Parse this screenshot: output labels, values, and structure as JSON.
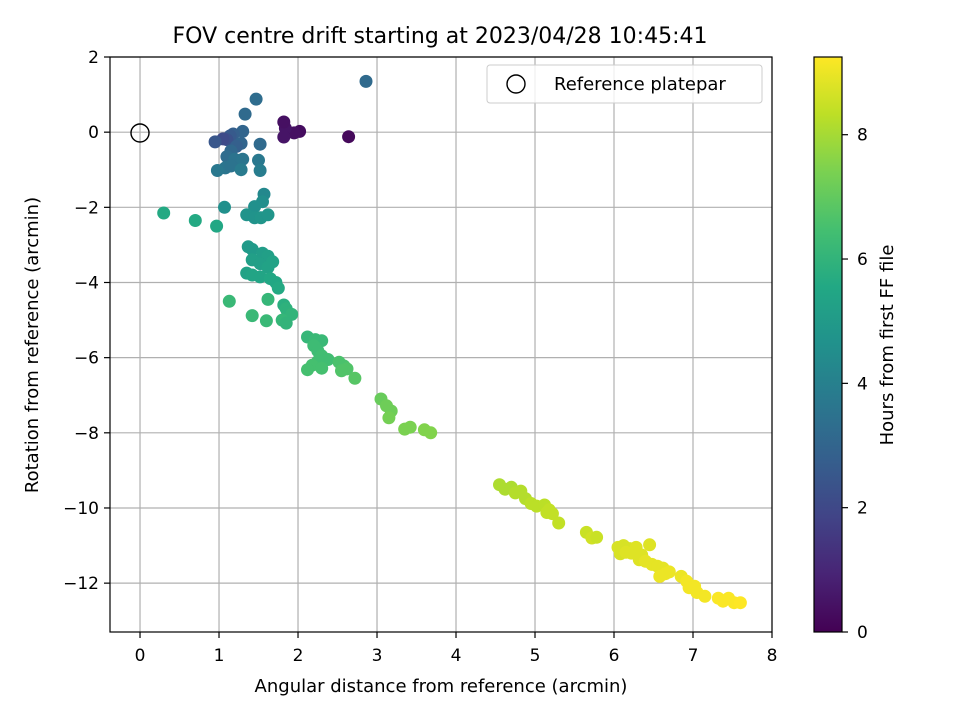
{
  "chart_data": {
    "type": "scatter",
    "title": "FOV centre drift starting at 2023/04/28 10:45:41",
    "xlabel": "Angular distance from reference (arcmin)",
    "ylabel": "Rotation from reference (arcmin)",
    "xlim": [
      -0.38,
      8.0
    ],
    "ylim": [
      -13.3,
      2.0
    ],
    "xticks": [
      0,
      1,
      2,
      3,
      4,
      5,
      6,
      7,
      8
    ],
    "yticks": [
      2,
      0,
      -2,
      -4,
      -6,
      -8,
      -10,
      -12
    ],
    "grid": true,
    "legend": {
      "location": "top-right",
      "entries": [
        "Reference platepar"
      ]
    },
    "reference": {
      "x": 0,
      "y": 0
    },
    "colorbar": {
      "label": "Hours from first FF file",
      "range": [
        0,
        9.25
      ],
      "ticks": [
        0,
        2,
        4,
        6,
        8
      ],
      "colormap": "viridis"
    },
    "points": [
      [
        2.86,
        1.35,
        3.2
      ],
      [
        2.64,
        -0.12,
        0.2
      ],
      [
        2.02,
        0.02,
        0.3
      ],
      [
        1.95,
        -0.02,
        0.4
      ],
      [
        1.84,
        0.1,
        0.5
      ],
      [
        1.82,
        0.27,
        0.4
      ],
      [
        1.82,
        -0.13,
        0.5
      ],
      [
        1.47,
        0.88,
        3.3
      ],
      [
        1.33,
        0.48,
        3.2
      ],
      [
        1.3,
        0.02,
        3.0
      ],
      [
        1.18,
        -0.05,
        2.8
      ],
      [
        1.14,
        -0.1,
        2.6
      ],
      [
        1.1,
        -0.2,
        2.3
      ],
      [
        1.05,
        -0.18,
        2.1
      ],
      [
        0.95,
        -0.26,
        2.5
      ],
      [
        1.28,
        -0.3,
        3.0
      ],
      [
        1.22,
        -0.38,
        2.8
      ],
      [
        1.15,
        -0.5,
        3.1
      ],
      [
        1.52,
        -0.32,
        3.2
      ],
      [
        1.1,
        -0.65,
        3.3
      ],
      [
        1.2,
        -0.72,
        3.5
      ],
      [
        1.3,
        -0.72,
        3.6
      ],
      [
        1.5,
        -0.75,
        3.7
      ],
      [
        1.08,
        -0.95,
        3.6
      ],
      [
        1.15,
        -0.9,
        3.5
      ],
      [
        0.98,
        -1.02,
        3.7
      ],
      [
        1.28,
        -1.0,
        3.8
      ],
      [
        1.52,
        -1.02,
        3.9
      ],
      [
        1.57,
        -1.65,
        4.3
      ],
      [
        1.55,
        -1.85,
        4.5
      ],
      [
        1.45,
        -1.98,
        4.6
      ],
      [
        1.35,
        -2.2,
        4.7
      ],
      [
        1.45,
        -2.28,
        4.7
      ],
      [
        1.53,
        -2.28,
        4.8
      ],
      [
        1.62,
        -2.2,
        4.8
      ],
      [
        1.07,
        -2.0,
        4.6
      ],
      [
        0.3,
        -2.15,
        5.6
      ],
      [
        0.7,
        -2.35,
        5.6
      ],
      [
        0.97,
        -2.5,
        5.5
      ],
      [
        1.37,
        -3.05,
        5.0
      ],
      [
        1.42,
        -3.12,
        5.0
      ],
      [
        1.55,
        -3.22,
        5.1
      ],
      [
        1.62,
        -3.3,
        5.2
      ],
      [
        1.42,
        -3.4,
        5.2
      ],
      [
        1.52,
        -3.5,
        5.2
      ],
      [
        1.68,
        -3.45,
        5.3
      ],
      [
        1.62,
        -3.6,
        5.3
      ],
      [
        1.35,
        -3.75,
        5.3
      ],
      [
        1.42,
        -3.8,
        5.4
      ],
      [
        1.52,
        -3.85,
        5.4
      ],
      [
        1.65,
        -3.9,
        5.5
      ],
      [
        1.72,
        -4.0,
        5.5
      ],
      [
        1.75,
        -4.15,
        5.6
      ],
      [
        1.82,
        -4.6,
        5.8
      ],
      [
        1.85,
        -4.7,
        5.9
      ],
      [
        1.87,
        -4.8,
        5.9
      ],
      [
        1.92,
        -4.85,
        6.0
      ],
      [
        1.8,
        -5.0,
        6.1
      ],
      [
        1.85,
        -5.08,
        6.0
      ],
      [
        1.62,
        -4.45,
        6.1
      ],
      [
        1.13,
        -4.5,
        6.2
      ],
      [
        1.42,
        -4.88,
        6.2
      ],
      [
        1.6,
        -5.02,
        6.2
      ],
      [
        2.12,
        -5.45,
        6.1
      ],
      [
        2.22,
        -5.52,
        6.2
      ],
      [
        2.3,
        -5.55,
        6.2
      ],
      [
        2.2,
        -5.68,
        6.3
      ],
      [
        2.25,
        -5.82,
        6.3
      ],
      [
        2.3,
        -5.95,
        6.4
      ],
      [
        2.38,
        -6.05,
        6.4
      ],
      [
        2.25,
        -6.1,
        6.4
      ],
      [
        2.18,
        -6.2,
        6.5
      ],
      [
        2.12,
        -6.32,
        6.5
      ],
      [
        2.3,
        -6.28,
        6.5
      ],
      [
        2.52,
        -6.12,
        6.6
      ],
      [
        2.58,
        -6.22,
        6.6
      ],
      [
        2.62,
        -6.3,
        6.7
      ],
      [
        2.55,
        -6.35,
        6.7
      ],
      [
        2.72,
        -6.55,
        6.8
      ],
      [
        3.05,
        -7.1,
        7.1
      ],
      [
        3.12,
        -7.28,
        7.2
      ],
      [
        3.18,
        -7.42,
        7.2
      ],
      [
        3.15,
        -7.6,
        7.3
      ],
      [
        3.35,
        -7.9,
        7.4
      ],
      [
        3.42,
        -7.85,
        7.4
      ],
      [
        3.6,
        -7.92,
        7.5
      ],
      [
        3.68,
        -8.0,
        7.5
      ],
      [
        4.55,
        -9.38,
        8.1
      ],
      [
        4.62,
        -9.5,
        8.1
      ],
      [
        4.7,
        -9.45,
        8.1
      ],
      [
        4.75,
        -9.6,
        8.2
      ],
      [
        4.82,
        -9.55,
        8.2
      ],
      [
        4.88,
        -9.75,
        8.2
      ],
      [
        4.95,
        -9.88,
        8.3
      ],
      [
        5.02,
        -9.95,
        8.3
      ],
      [
        5.12,
        -9.92,
        8.3
      ],
      [
        5.18,
        -10.05,
        8.4
      ],
      [
        5.22,
        -10.15,
        8.4
      ],
      [
        5.3,
        -10.4,
        8.4
      ],
      [
        5.15,
        -10.12,
        8.4
      ],
      [
        5.65,
        -10.65,
        8.5
      ],
      [
        5.72,
        -10.8,
        8.6
      ],
      [
        5.78,
        -10.78,
        8.5
      ],
      [
        6.05,
        -11.05,
        8.7
      ],
      [
        6.12,
        -11.0,
        8.7
      ],
      [
        6.2,
        -11.08,
        8.7
      ],
      [
        6.28,
        -11.05,
        8.8
      ],
      [
        6.08,
        -11.22,
        8.7
      ],
      [
        6.15,
        -11.18,
        8.8
      ],
      [
        6.22,
        -11.2,
        8.8
      ],
      [
        6.35,
        -11.25,
        8.8
      ],
      [
        6.45,
        -10.98,
        8.8
      ],
      [
        6.32,
        -11.38,
        8.8
      ],
      [
        6.4,
        -11.42,
        8.9
      ],
      [
        6.48,
        -11.5,
        8.9
      ],
      [
        6.55,
        -11.55,
        8.9
      ],
      [
        6.62,
        -11.6,
        8.9
      ],
      [
        6.7,
        -11.7,
        9.0
      ],
      [
        6.65,
        -11.75,
        9.0
      ],
      [
        6.58,
        -11.82,
        9.0
      ],
      [
        6.85,
        -11.82,
        9.0
      ],
      [
        6.92,
        -11.95,
        9.1
      ],
      [
        6.95,
        -12.12,
        9.1
      ],
      [
        7.02,
        -12.08,
        9.1
      ],
      [
        7.05,
        -12.25,
        9.1
      ],
      [
        7.15,
        -12.35,
        9.1
      ],
      [
        7.32,
        -12.4,
        9.2
      ],
      [
        7.38,
        -12.48,
        9.2
      ],
      [
        7.45,
        -12.4,
        9.2
      ],
      [
        7.52,
        -12.52,
        9.2
      ],
      [
        7.6,
        -12.52,
        9.25
      ]
    ]
  }
}
